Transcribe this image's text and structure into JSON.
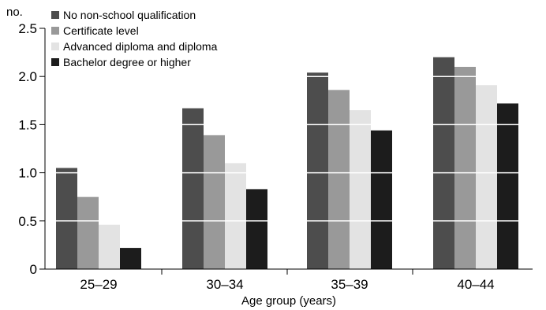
{
  "chart_data": {
    "type": "bar",
    "title": "",
    "xlabel": "Age group (years)",
    "ylabel": "no.",
    "ylim": [
      0,
      2.5
    ],
    "yticks": [
      "0",
      "0.5",
      "1.0",
      "1.5",
      "2.0",
      "2.5"
    ],
    "ytick_values": [
      0,
      0.5,
      1.0,
      1.5,
      2.0,
      2.5
    ],
    "categories": [
      "25–29",
      "30–34",
      "35–39",
      "40–44"
    ],
    "series": [
      {
        "name": "No non-school qualification",
        "color": "#4d4d4d",
        "values": [
          1.05,
          1.67,
          2.04,
          2.2
        ]
      },
      {
        "name": "Certificate level",
        "color": "#999999",
        "values": [
          0.75,
          1.39,
          1.86,
          2.1
        ]
      },
      {
        "name": "Advanced diploma and diploma",
        "color": "#e3e3e3",
        "values": [
          0.46,
          1.1,
          1.65,
          1.91
        ]
      },
      {
        "name": "Bachelor degree or higher",
        "color": "#1c1c1c",
        "values": [
          0.22,
          0.83,
          1.44,
          1.72
        ]
      }
    ],
    "legend_position": "top-left",
    "grid": true,
    "grid_color": "#ffffff"
  }
}
